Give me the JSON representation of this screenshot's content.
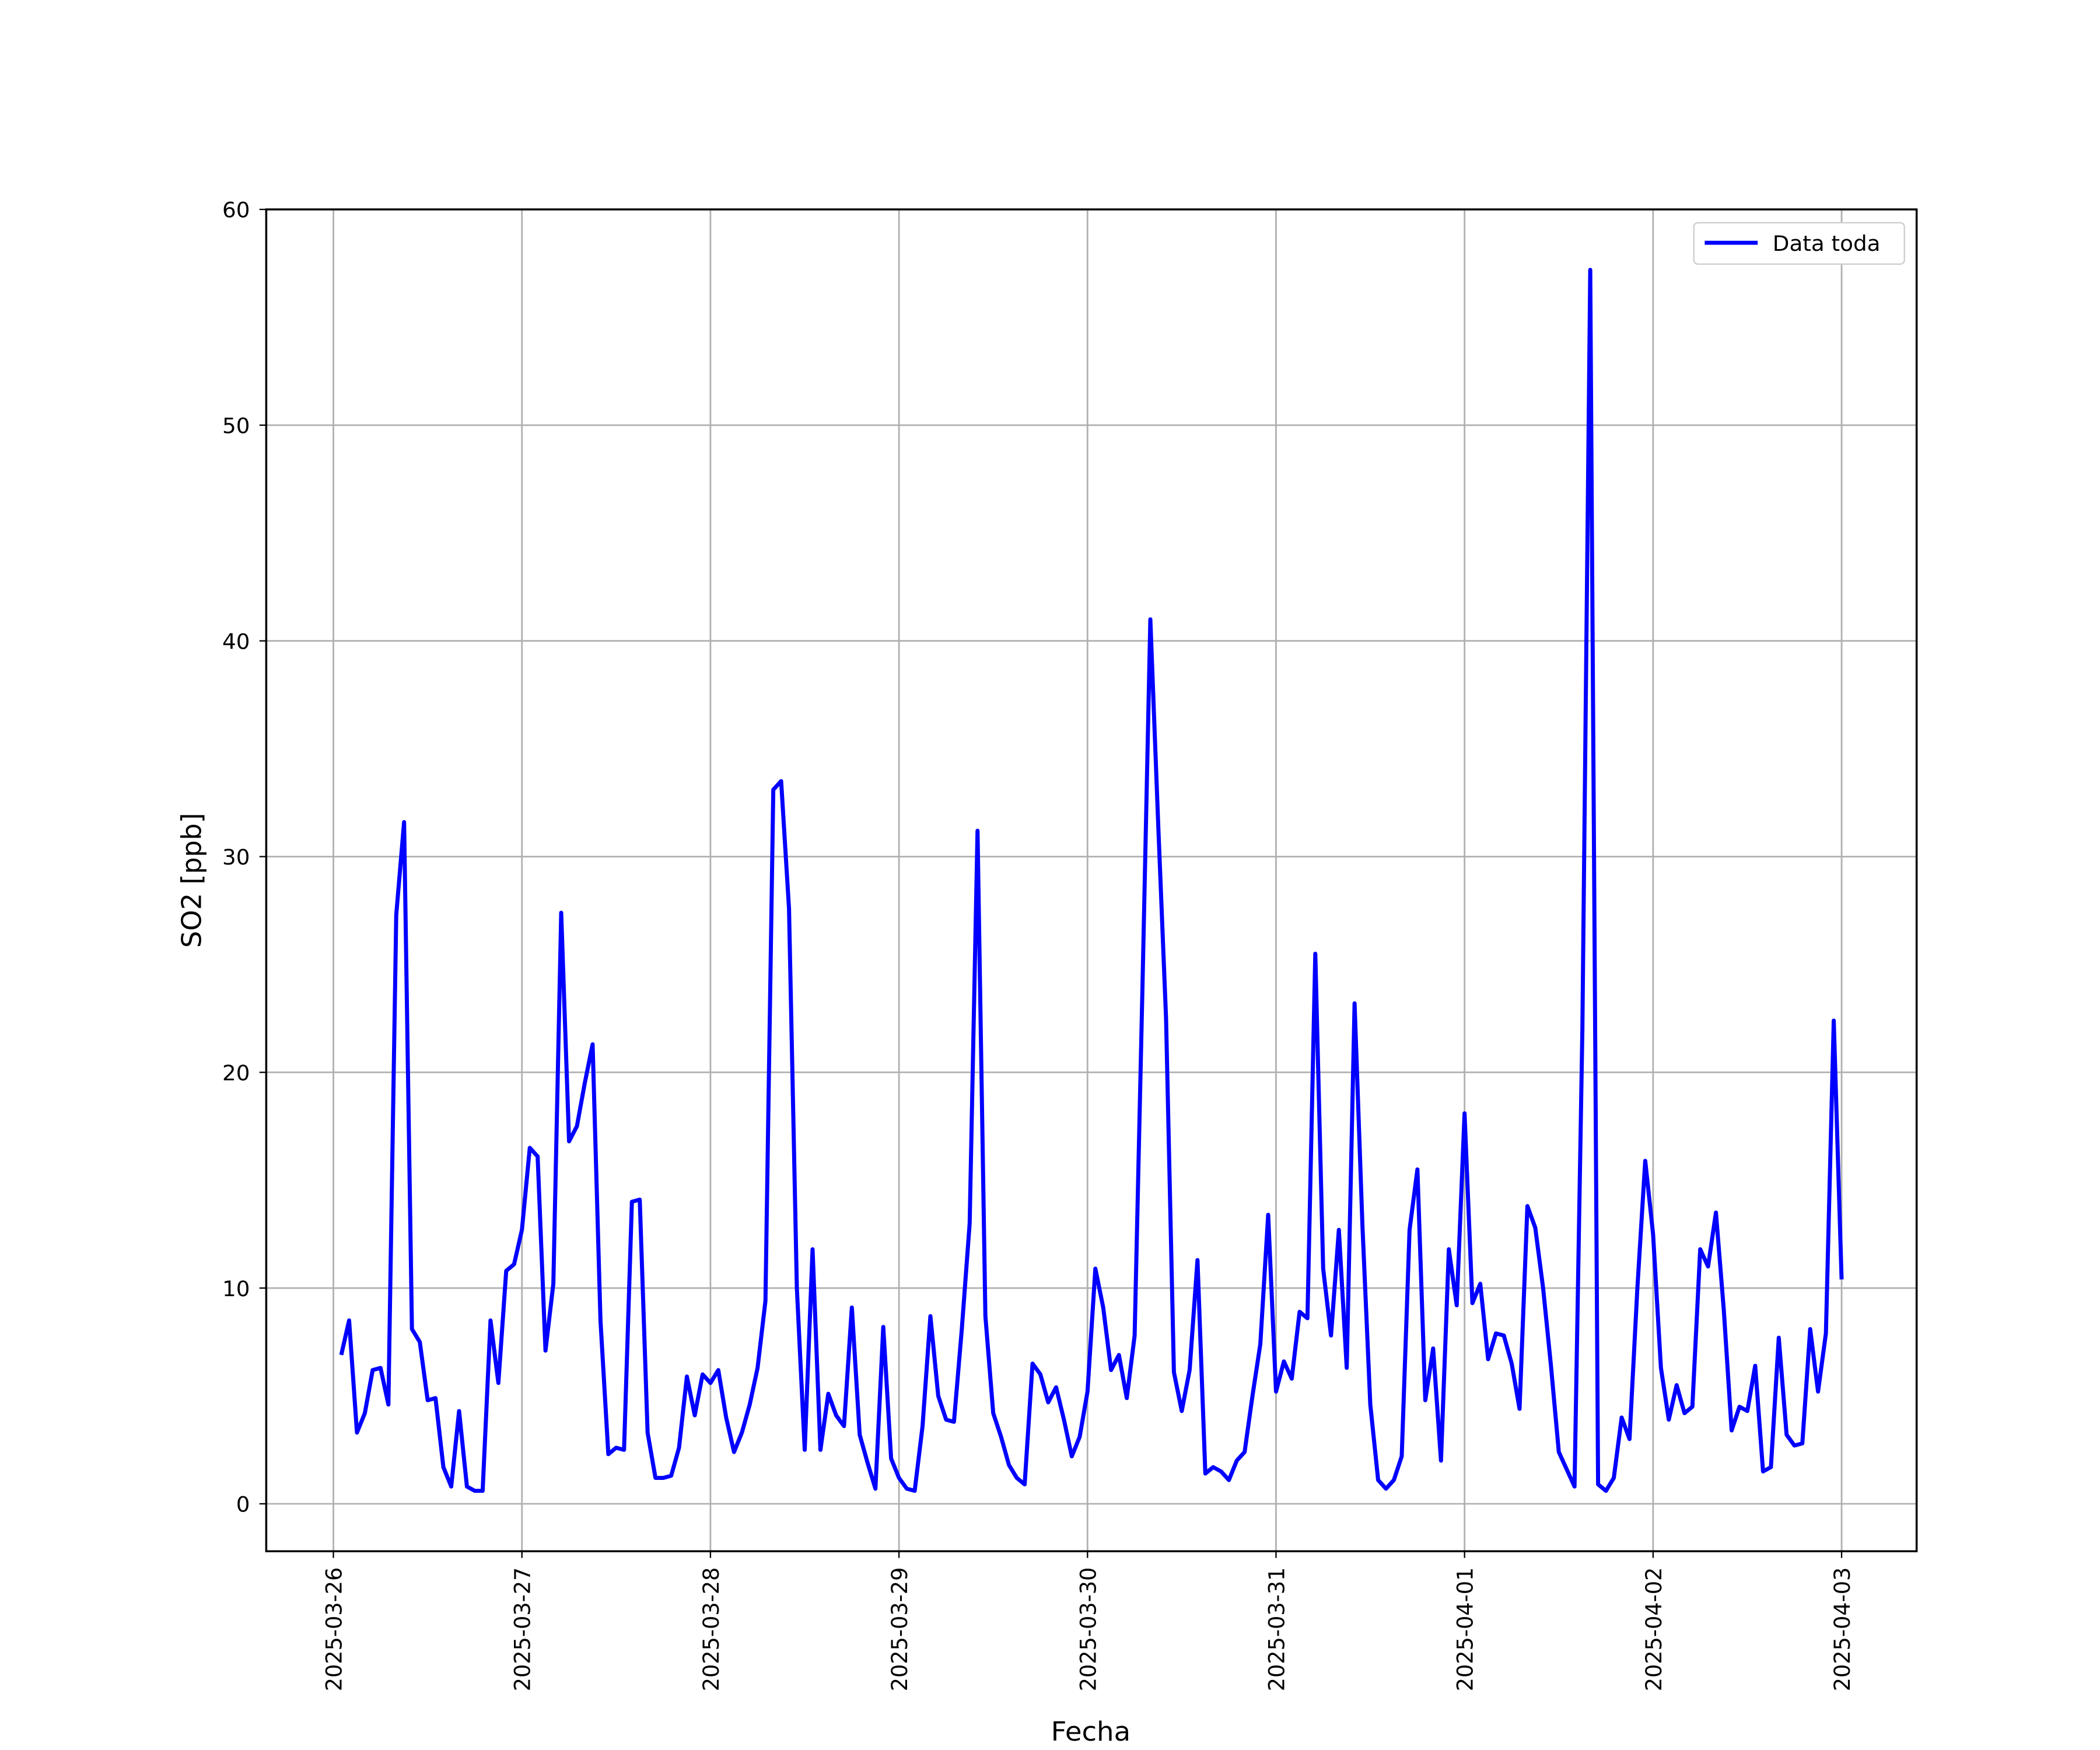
{
  "chart_data": {
    "type": "line",
    "xlabel": "Fecha",
    "ylabel": "SO2 [ppb]",
    "x": [
      "2025-03-26 01:00",
      "2025-03-26 02:00",
      "2025-03-26 03:00",
      "2025-03-26 04:00",
      "2025-03-26 05:00",
      "2025-03-26 06:00",
      "2025-03-26 07:00",
      "2025-03-26 08:00",
      "2025-03-26 09:00",
      "2025-03-26 10:00",
      "2025-03-26 11:00",
      "2025-03-26 12:00",
      "2025-03-26 13:00",
      "2025-03-26 14:00",
      "2025-03-26 15:00",
      "2025-03-26 16:00",
      "2025-03-26 17:00",
      "2025-03-26 18:00",
      "2025-03-26 19:00",
      "2025-03-26 20:00",
      "2025-03-26 21:00",
      "2025-03-26 22:00",
      "2025-03-26 23:00",
      "2025-03-27 00:00",
      "2025-03-27 01:00",
      "2025-03-27 02:00",
      "2025-03-27 03:00",
      "2025-03-27 04:00",
      "2025-03-27 05:00",
      "2025-03-27 06:00",
      "2025-03-27 07:00",
      "2025-03-27 08:00",
      "2025-03-27 09:00",
      "2025-03-27 10:00",
      "2025-03-27 11:00",
      "2025-03-27 12:00",
      "2025-03-27 13:00",
      "2025-03-27 14:00",
      "2025-03-27 15:00",
      "2025-03-27 16:00",
      "2025-03-27 17:00",
      "2025-03-27 18:00",
      "2025-03-27 19:00",
      "2025-03-27 20:00",
      "2025-03-27 21:00",
      "2025-03-27 22:00",
      "2025-03-27 23:00",
      "2025-03-28 00:00",
      "2025-03-28 01:00",
      "2025-03-28 02:00",
      "2025-03-28 03:00",
      "2025-03-28 04:00",
      "2025-03-28 05:00",
      "2025-03-28 06:00",
      "2025-03-28 07:00",
      "2025-03-28 08:00",
      "2025-03-28 09:00",
      "2025-03-28 10:00",
      "2025-03-28 11:00",
      "2025-03-28 12:00",
      "2025-03-28 13:00",
      "2025-03-28 14:00",
      "2025-03-28 15:00",
      "2025-03-28 16:00",
      "2025-03-28 17:00",
      "2025-03-28 18:00",
      "2025-03-28 19:00",
      "2025-03-28 20:00",
      "2025-03-28 21:00",
      "2025-03-28 22:00",
      "2025-03-28 23:00",
      "2025-03-29 00:00",
      "2025-03-29 01:00",
      "2025-03-29 02:00",
      "2025-03-29 03:00",
      "2025-03-29 04:00",
      "2025-03-29 05:00",
      "2025-03-29 06:00",
      "2025-03-29 07:00",
      "2025-03-29 08:00",
      "2025-03-29 09:00",
      "2025-03-29 10:00",
      "2025-03-29 11:00",
      "2025-03-29 12:00",
      "2025-03-29 13:00",
      "2025-03-29 14:00",
      "2025-03-29 15:00",
      "2025-03-29 16:00",
      "2025-03-29 17:00",
      "2025-03-29 18:00",
      "2025-03-29 19:00",
      "2025-03-29 20:00",
      "2025-03-29 21:00",
      "2025-03-29 22:00",
      "2025-03-29 23:00",
      "2025-03-30 00:00",
      "2025-03-30 01:00",
      "2025-03-30 02:00",
      "2025-03-30 03:00",
      "2025-03-30 04:00",
      "2025-03-30 05:00",
      "2025-03-30 06:00",
      "2025-03-30 07:00",
      "2025-03-30 08:00",
      "2025-03-30 09:00",
      "2025-03-30 10:00",
      "2025-03-30 11:00",
      "2025-03-30 12:00",
      "2025-03-30 13:00",
      "2025-03-30 14:00",
      "2025-03-30 15:00",
      "2025-03-30 16:00",
      "2025-03-30 17:00",
      "2025-03-30 18:00",
      "2025-03-30 19:00",
      "2025-03-30 20:00",
      "2025-03-30 21:00",
      "2025-03-30 22:00",
      "2025-03-30 23:00",
      "2025-03-31 00:00",
      "2025-03-31 01:00",
      "2025-03-31 02:00",
      "2025-03-31 03:00",
      "2025-03-31 04:00",
      "2025-03-31 05:00",
      "2025-03-31 06:00",
      "2025-03-31 07:00",
      "2025-03-31 08:00",
      "2025-03-31 09:00",
      "2025-03-31 10:00",
      "2025-03-31 11:00",
      "2025-03-31 12:00",
      "2025-03-31 13:00",
      "2025-03-31 14:00",
      "2025-03-31 15:00",
      "2025-03-31 16:00",
      "2025-03-31 17:00",
      "2025-03-31 18:00",
      "2025-03-31 19:00",
      "2025-03-31 20:00",
      "2025-03-31 21:00",
      "2025-03-31 22:00",
      "2025-03-31 23:00",
      "2025-04-01 00:00",
      "2025-04-01 01:00",
      "2025-04-01 02:00",
      "2025-04-01 03:00",
      "2025-04-01 04:00",
      "2025-04-01 05:00",
      "2025-04-01 06:00",
      "2025-04-01 07:00",
      "2025-04-01 08:00",
      "2025-04-01 09:00",
      "2025-04-01 10:00",
      "2025-04-01 11:00",
      "2025-04-01 12:00",
      "2025-04-01 13:00",
      "2025-04-01 14:00",
      "2025-04-01 15:00",
      "2025-04-01 16:00",
      "2025-04-01 17:00",
      "2025-04-01 18:00",
      "2025-04-01 19:00",
      "2025-04-01 20:00",
      "2025-04-01 21:00",
      "2025-04-01 22:00",
      "2025-04-01 23:00",
      "2025-04-02 00:00",
      "2025-04-02 01:00",
      "2025-04-02 02:00",
      "2025-04-02 03:00",
      "2025-04-02 04:00",
      "2025-04-02 05:00",
      "2025-04-02 06:00",
      "2025-04-02 07:00",
      "2025-04-02 08:00",
      "2025-04-02 09:00",
      "2025-04-02 10:00",
      "2025-04-02 11:00",
      "2025-04-02 12:00",
      "2025-04-02 13:00",
      "2025-04-02 14:00",
      "2025-04-02 15:00",
      "2025-04-02 16:00",
      "2025-04-02 17:00",
      "2025-04-02 18:00",
      "2025-04-02 19:00",
      "2025-04-02 20:00",
      "2025-04-02 21:00",
      "2025-04-02 22:00",
      "2025-04-02 23:00",
      "2025-04-03 00:00"
    ],
    "series": [
      {
        "name": "Data toda",
        "color": "#0000ff",
        "values": [
          6.9,
          8.5,
          3.3,
          4.2,
          6.2,
          6.3,
          4.6,
          27.3,
          31.6,
          8.1,
          7.5,
          4.8,
          4.9,
          1.7,
          0.8,
          4.3,
          0.8,
          0.6,
          0.6,
          8.5,
          5.6,
          10.8,
          11.1,
          12.7,
          16.5,
          16.1,
          7.1,
          10.2,
          27.4,
          16.8,
          17.5,
          19.5,
          21.3,
          8.5,
          2.3,
          2.6,
          2.5,
          14.0,
          14.1,
          3.3,
          1.2,
          1.2,
          1.3,
          2.6,
          5.9,
          4.1,
          6.0,
          5.6,
          6.2,
          4.0,
          2.4,
          3.3,
          4.6,
          6.3,
          9.4,
          33.1,
          33.5,
          27.6,
          10.0,
          2.5,
          11.8,
          2.5,
          5.1,
          4.1,
          3.6,
          9.1,
          3.2,
          1.9,
          0.7,
          8.2,
          2.1,
          1.2,
          0.7,
          0.6,
          3.6,
          8.7,
          5.0,
          3.9,
          3.8,
          8.1,
          13.0,
          31.2,
          8.7,
          4.2,
          3.1,
          1.8,
          1.2,
          0.9,
          6.5,
          6.0,
          4.7,
          5.4,
          3.9,
          2.2,
          3.1,
          5.2,
          10.9,
          9.1,
          6.2,
          6.9,
          4.9,
          7.8,
          24.0,
          41.0,
          31.5,
          22.5,
          6.1,
          4.3,
          6.2,
          11.3,
          1.4,
          1.7,
          1.5,
          1.1,
          2.0,
          2.4,
          5.0,
          7.4,
          13.4,
          5.2,
          6.6,
          5.8,
          8.9,
          8.6,
          25.5,
          10.9,
          7.8,
          12.7,
          6.3,
          23.2,
          12.9,
          4.6,
          1.1,
          0.7,
          1.1,
          2.2,
          12.7,
          15.5,
          4.8,
          7.2,
          2.0,
          11.8,
          9.2,
          18.1,
          9.3,
          10.2,
          6.7,
          7.9,
          7.8,
          6.5,
          4.4,
          13.8,
          12.8,
          10.0,
          6.4,
          2.4,
          1.6,
          0.8,
          22.0,
          57.2,
          0.9,
          0.6,
          1.2,
          4.0,
          3.0,
          10.0,
          15.9,
          12.5,
          6.3,
          3.9,
          5.5,
          4.2,
          4.5,
          11.8,
          11.0,
          13.5,
          9.0,
          3.4,
          4.5,
          4.3,
          6.4,
          1.5,
          1.7,
          7.7,
          3.2,
          2.7,
          2.8,
          8.1,
          5.2,
          7.9,
          22.4,
          10.4
        ]
      }
    ],
    "xlim": [
      "2025-03-25 15:27",
      "2025-04-03 09:33"
    ],
    "xticks": [
      "2025-03-26",
      "2025-03-27",
      "2025-03-28",
      "2025-03-29",
      "2025-03-30",
      "2025-03-31",
      "2025-04-01",
      "2025-04-02",
      "2025-04-03"
    ],
    "ylim": [
      -2.2,
      60
    ],
    "yticks": [
      0,
      10,
      20,
      30,
      40,
      50,
      60
    ],
    "grid": true,
    "legend": "upper right"
  }
}
